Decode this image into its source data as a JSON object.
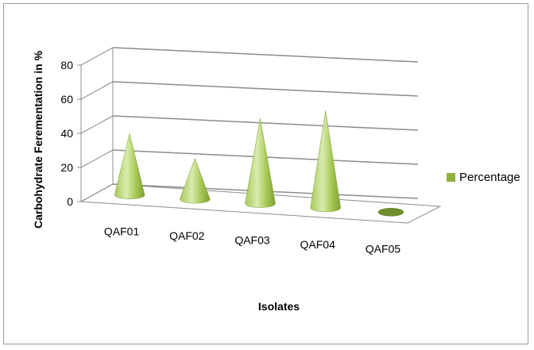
{
  "chart_data": {
    "type": "bar",
    "style": "3d-cone",
    "categories": [
      "QAF01",
      "QAF02",
      "QAF03",
      "QAF04",
      "QAF05"
    ],
    "series": [
      {
        "name": "Percentage",
        "values": [
          36,
          24,
          50,
          57,
          0
        ],
        "color": "#8fb23f"
      }
    ],
    "xlabel": "Isolates",
    "ylabel": "Carbohydrate Ferementation in %",
    "yticks": [
      0,
      20,
      40,
      60,
      80
    ],
    "ylim": [
      0,
      80
    ],
    "grid": true,
    "legend_position": "right"
  }
}
